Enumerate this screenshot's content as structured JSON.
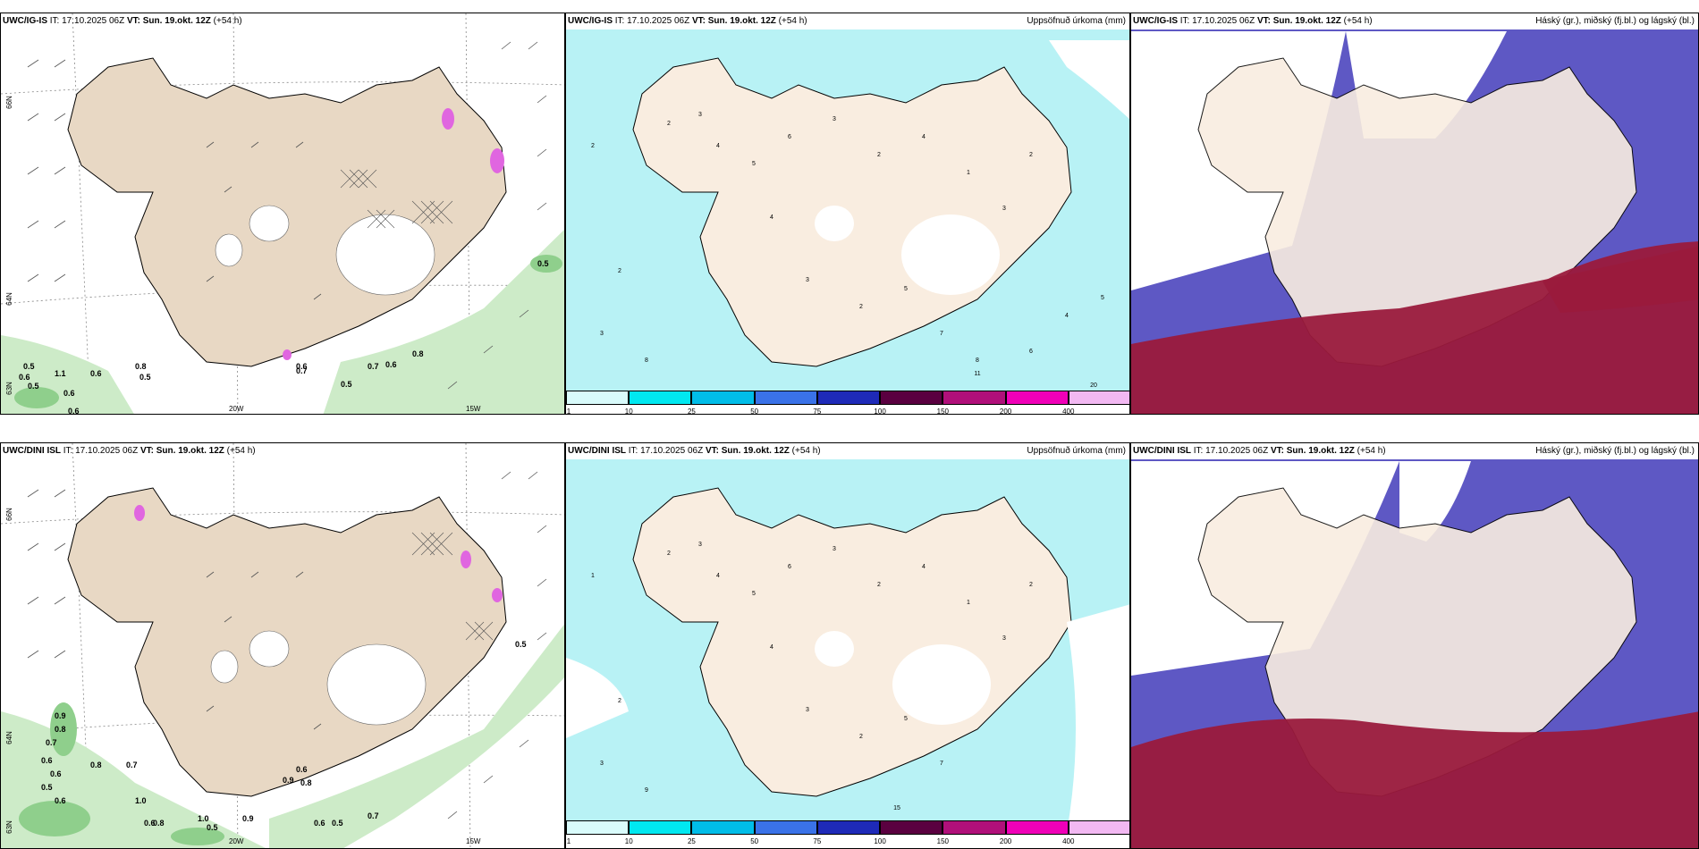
{
  "colors": {
    "land": "#e8d8c4",
    "land_light": "#f9ede0",
    "precip_light": "#b8f2f5",
    "green_light": "#cdebc8",
    "green_dark": "#8fcf8c",
    "cloud_blue": "#5e58c4",
    "cloud_red": "#9a1a3c",
    "pink": "#e066e0"
  },
  "rows": [
    {
      "model": "UWC/IG-IS",
      "it": "IT: 17.10.2025 06Z",
      "vt_label": "VT: Sun. 19.okt. 12Z",
      "lead": "(+54 h)",
      "precip_title": "Uppsöfnuð úrkoma (mm)",
      "cloud_title": "Háský (gr.), miðský (fj.bl.) og lágský (bl.)",
      "wind_labels": [
        "0.5",
        "0.6",
        "0.5",
        "1.1",
        "0.6",
        "0.6",
        "0.6",
        "0.8",
        "0.5",
        "0.6",
        "0.7",
        "0.6",
        "0.8",
        "0.5",
        "0.5",
        "0.7"
      ],
      "precip_labels": [
        "1",
        "2",
        "3",
        "4",
        "5",
        "6",
        "7",
        "8",
        "2",
        "3",
        "4",
        "1",
        "5",
        "6",
        "7",
        "3",
        "2",
        "4",
        "11",
        "20"
      ]
    },
    {
      "model": "UWC/DINI ISL",
      "it": "IT: 17.10.2025 06Z",
      "vt_label": "VT: Sun. 19.okt. 12Z",
      "lead": "(+54 h)",
      "precip_title": "Uppsöfnuð úrkoma (mm)",
      "cloud_title": "Háský (gr.), miðský (fj.bl.) og lágský (bl.)",
      "wind_labels": [
        "0.9",
        "0.8",
        "0.7",
        "0.6",
        "0.6",
        "0.5",
        "0.6",
        "0.8",
        "0.7",
        "1.0",
        "0.6",
        "0.8",
        "1.0",
        "0.5",
        "0.9",
        "0.6",
        "0.9",
        "0.8",
        "0.6",
        "0.5",
        "0.7",
        "0.5"
      ],
      "precip_labels": [
        "1",
        "2",
        "3",
        "4",
        "5",
        "6",
        "7",
        "8",
        "9",
        "3",
        "2",
        "1",
        "4",
        "5",
        "6",
        "15",
        "2",
        "3"
      ]
    }
  ],
  "axis_labels": {
    "lat_upper": "66N",
    "lat_lower": "64N",
    "lat_lower2": "63N",
    "lon_left": "20W",
    "lon_right": "15W"
  },
  "legend": {
    "ticks": [
      "1",
      "10",
      "25",
      "50",
      "75",
      "100",
      "150",
      "200",
      "400"
    ],
    "colors": [
      "#d9fbfb",
      "#00e8f0",
      "#00bde8",
      "#3a72e8",
      "#1e2ab8",
      "#5a0040",
      "#b0107a",
      "#f000b8",
      "#f2b8f2"
    ]
  }
}
